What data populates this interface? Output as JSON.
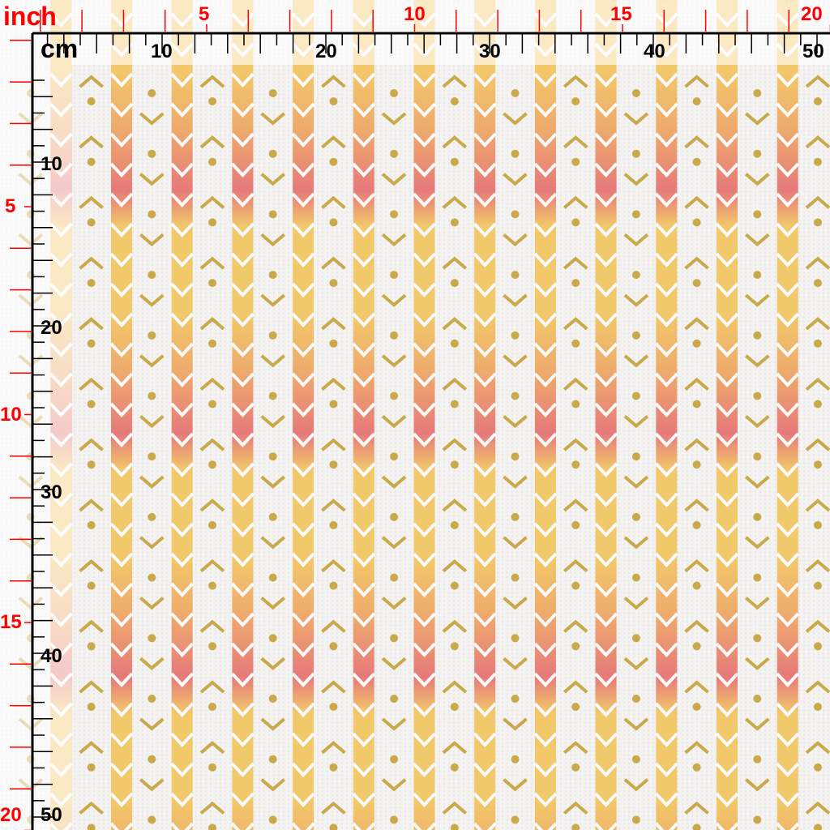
{
  "swatch": {
    "description_colors": {
      "background": "#f4f3f2",
      "arrow_yellow": "#f2c96a",
      "arrow_orange": "#eeaa6c",
      "arrow_pink": "#e67a7a",
      "gold_glitter": "#c9a94a",
      "ruler_inch": "#ff0000",
      "ruler_cm": "#000000"
    }
  },
  "ruler_inch": {
    "unit_label": "inch",
    "top_labels": [
      "5",
      "10",
      "15",
      "20"
    ],
    "left_labels": [
      "5",
      "10",
      "15",
      "20"
    ]
  },
  "ruler_cm": {
    "unit_label": "cm",
    "top_labels": [
      "10",
      "20",
      "30",
      "40",
      "50"
    ],
    "left_labels": [
      "10",
      "20",
      "30",
      "40",
      "50"
    ]
  }
}
